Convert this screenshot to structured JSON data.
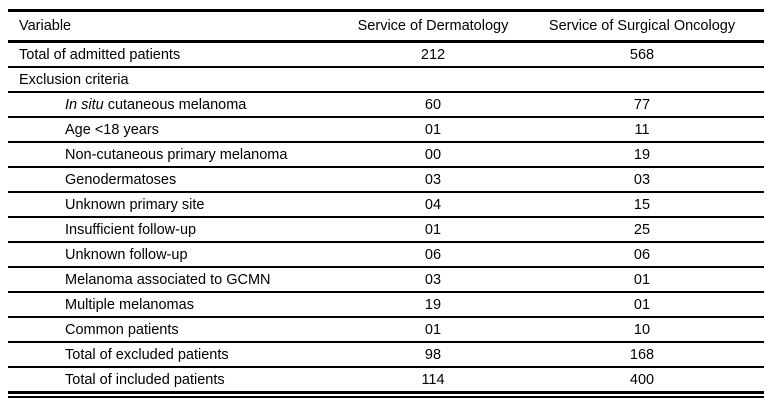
{
  "table": {
    "columns": {
      "variable": "Variable",
      "dermatology": "Service of Dermatology",
      "oncology": "Service of Surgical Oncology"
    },
    "rows": [
      {
        "label": "Total of admitted patients",
        "dermatology": "212",
        "oncology": "568"
      },
      {
        "label": "Exclusion criteria",
        "dermatology": "",
        "oncology": ""
      },
      {
        "label_italic": "In situ",
        "label_rest": " cutaneous melanoma",
        "dermatology": "60",
        "oncology": "77"
      },
      {
        "label": "Age <18 years",
        "dermatology": "01",
        "oncology": "11"
      },
      {
        "label": "Non-cutaneous primary melanoma",
        "dermatology": "00",
        "oncology": "19"
      },
      {
        "label": "Genodermatoses",
        "dermatology": "03",
        "oncology": "03"
      },
      {
        "label": "Unknown primary site",
        "dermatology": "04",
        "oncology": "15"
      },
      {
        "label": "Insufficient follow-up",
        "dermatology": "01",
        "oncology": "25"
      },
      {
        "label": "Unknown follow-up",
        "dermatology": "06",
        "oncology": "06"
      },
      {
        "label": "Melanoma associated to GCMN",
        "dermatology": "03",
        "oncology": "01"
      },
      {
        "label": "Multiple melanomas",
        "dermatology": "19",
        "oncology": "01"
      },
      {
        "label": "Common patients",
        "dermatology": "01",
        "oncology": "10"
      },
      {
        "label": "Total of excluded patients",
        "dermatology": "98",
        "oncology": "168"
      },
      {
        "label": "Total of included patients",
        "dermatology": "114",
        "oncology": "400"
      }
    ]
  }
}
